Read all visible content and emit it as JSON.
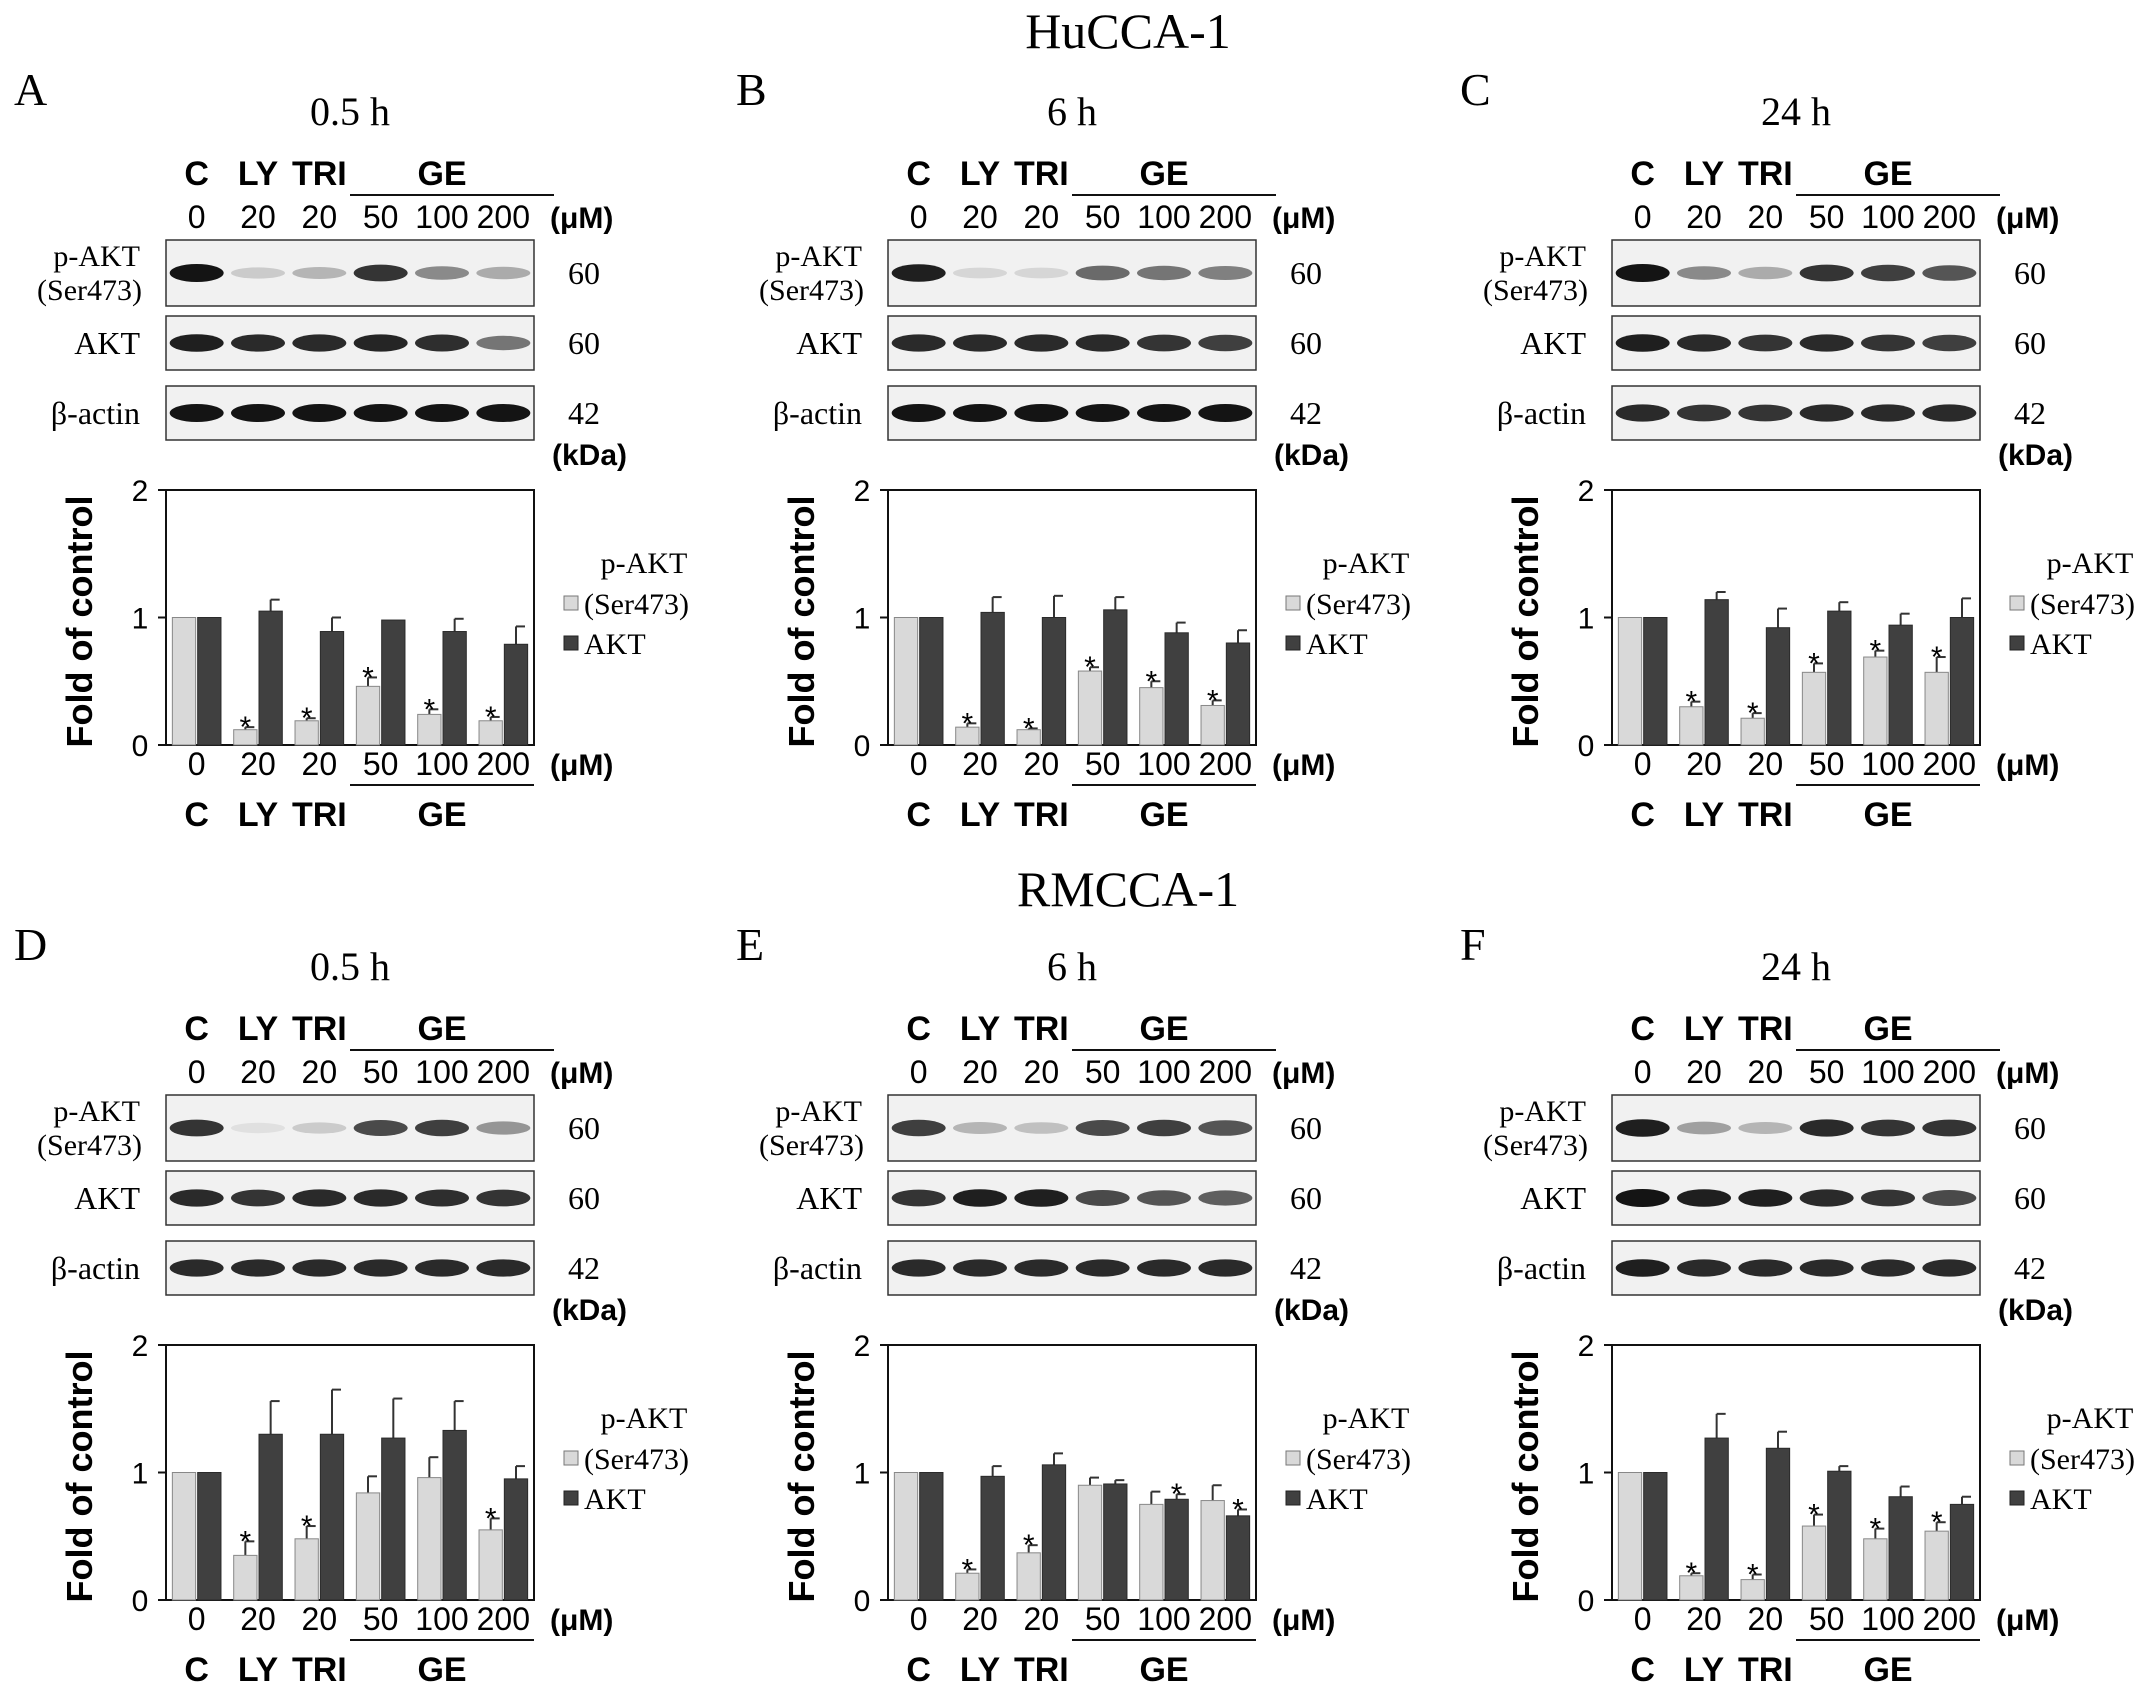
{
  "figure": {
    "row_titles": [
      "HuCCA-1",
      "RMCCA-1"
    ],
    "panels": [
      {
        "letter": "A",
        "time": "0.5 h"
      },
      {
        "letter": "B",
        "time": "6 h"
      },
      {
        "letter": "C",
        "time": "24 h"
      },
      {
        "letter": "D",
        "time": "0.5 h"
      },
      {
        "letter": "E",
        "time": "6 h"
      },
      {
        "letter": "F",
        "time": "24 h"
      }
    ],
    "lane_groups": [
      "C",
      "LY",
      "TRI",
      "GE"
    ],
    "concentrations": [
      "0",
      "20",
      "20",
      "50",
      "100",
      "200"
    ],
    "conc_unit": "(μM)",
    "blots": [
      {
        "label": "p-AKT",
        "label2": "(Ser473)",
        "kda": "60"
      },
      {
        "label": "AKT",
        "label2": "",
        "kda": "60"
      },
      {
        "label": "β-actin",
        "label2": "",
        "kda": "42"
      }
    ],
    "kda_unit": "(kDa)",
    "legend": {
      "title": "p-AKT",
      "light": "(Ser473)",
      "dark": "AKT"
    },
    "colors": {
      "light_bar": "#d9d9d9",
      "dark_bar": "#404040",
      "band": "#1a1a1a"
    }
  },
  "chart_data": [
    {
      "type": "bar",
      "panel": "A",
      "ylabel": "Fold of control",
      "ylim": [
        0,
        2
      ],
      "yticks": [
        "0",
        "1",
        "2"
      ],
      "categories": [
        "0",
        "20",
        "20",
        "50",
        "100",
        "200"
      ],
      "series": [
        {
          "name": "p-AKT (Ser473)",
          "values": [
            1.0,
            0.12,
            0.19,
            0.46,
            0.24,
            0.19
          ],
          "errors": [
            0,
            0.02,
            0.02,
            0.07,
            0.04,
            0.03
          ],
          "significant": [
            false,
            true,
            true,
            true,
            true,
            true
          ]
        },
        {
          "name": "AKT",
          "values": [
            1.0,
            1.05,
            0.89,
            0.98,
            0.89,
            0.79
          ],
          "errors": [
            0,
            0.09,
            0.11,
            0,
            0.1,
            0.14
          ],
          "significant": [
            false,
            false,
            false,
            false,
            false,
            false
          ]
        }
      ]
    },
    {
      "type": "bar",
      "panel": "B",
      "ylabel": "Fold of control",
      "ylim": [
        0,
        2
      ],
      "yticks": [
        "0",
        "1",
        "2"
      ],
      "categories": [
        "0",
        "20",
        "20",
        "50",
        "100",
        "200"
      ],
      "series": [
        {
          "name": "p-AKT (Ser473)",
          "values": [
            1.0,
            0.14,
            0.12,
            0.58,
            0.45,
            0.31
          ],
          "errors": [
            0,
            0.03,
            0.01,
            0.03,
            0.05,
            0.04
          ],
          "significant": [
            false,
            true,
            true,
            true,
            true,
            true
          ]
        },
        {
          "name": "AKT",
          "values": [
            1.0,
            1.04,
            1.0,
            1.06,
            0.88,
            0.8
          ],
          "errors": [
            0,
            0.12,
            0.17,
            0.1,
            0.08,
            0.1
          ],
          "significant": [
            false,
            false,
            false,
            false,
            false,
            false
          ]
        }
      ]
    },
    {
      "type": "bar",
      "panel": "C",
      "ylabel": "Fold of control",
      "ylim": [
        0,
        2
      ],
      "yticks": [
        "0",
        "1",
        "2"
      ],
      "categories": [
        "0",
        "20",
        "20",
        "50",
        "100",
        "200"
      ],
      "series": [
        {
          "name": "p-AKT (Ser473)",
          "values": [
            1.0,
            0.3,
            0.21,
            0.57,
            0.69,
            0.57
          ],
          "errors": [
            0,
            0.04,
            0.04,
            0.07,
            0.05,
            0.12
          ],
          "significant": [
            false,
            true,
            true,
            true,
            true,
            true
          ]
        },
        {
          "name": "AKT",
          "values": [
            1.0,
            1.14,
            0.92,
            1.05,
            0.94,
            1.0
          ],
          "errors": [
            0,
            0.06,
            0.15,
            0.07,
            0.09,
            0.15
          ],
          "significant": [
            false,
            false,
            false,
            false,
            false,
            false
          ]
        }
      ]
    },
    {
      "type": "bar",
      "panel": "D",
      "ylabel": "Fold of control",
      "ylim": [
        0,
        2
      ],
      "yticks": [
        "0",
        "1",
        "2"
      ],
      "categories": [
        "0",
        "20",
        "20",
        "50",
        "100",
        "200"
      ],
      "series": [
        {
          "name": "p-AKT (Ser473)",
          "values": [
            1.0,
            0.35,
            0.48,
            0.84,
            0.96,
            0.55
          ],
          "errors": [
            0,
            0.11,
            0.1,
            0.13,
            0.16,
            0.09
          ],
          "significant": [
            false,
            true,
            true,
            false,
            false,
            true
          ]
        },
        {
          "name": "AKT",
          "values": [
            1.0,
            1.3,
            1.3,
            1.27,
            1.33,
            0.95
          ],
          "errors": [
            0,
            0.26,
            0.35,
            0.31,
            0.23,
            0.1
          ],
          "significant": [
            false,
            false,
            false,
            false,
            false,
            false
          ]
        }
      ]
    },
    {
      "type": "bar",
      "panel": "E",
      "ylabel": "Fold of control",
      "ylim": [
        0,
        2
      ],
      "yticks": [
        "0",
        "1",
        "2"
      ],
      "categories": [
        "0",
        "20",
        "20",
        "50",
        "100",
        "200"
      ],
      "series": [
        {
          "name": "p-AKT (Ser473)",
          "values": [
            1.0,
            0.21,
            0.37,
            0.9,
            0.75,
            0.78
          ],
          "errors": [
            0,
            0.03,
            0.06,
            0.06,
            0.1,
            0.12
          ],
          "significant": [
            false,
            true,
            true,
            false,
            false,
            false
          ]
        },
        {
          "name": "AKT",
          "values": [
            1.0,
            0.97,
            1.06,
            0.91,
            0.79,
            0.66
          ],
          "errors": [
            0,
            0.08,
            0.09,
            0.03,
            0.04,
            0.05
          ],
          "significant": [
            false,
            false,
            false,
            false,
            true,
            true
          ]
        }
      ]
    },
    {
      "type": "bar",
      "panel": "F",
      "ylabel": "Fold of control",
      "ylim": [
        0,
        2
      ],
      "yticks": [
        "0",
        "1",
        "2"
      ],
      "categories": [
        "0",
        "20",
        "20",
        "50",
        "100",
        "200"
      ],
      "series": [
        {
          "name": "p-AKT (Ser473)",
          "values": [
            1.0,
            0.19,
            0.16,
            0.58,
            0.48,
            0.54
          ],
          "errors": [
            0,
            0.02,
            0.04,
            0.09,
            0.08,
            0.07
          ],
          "significant": [
            false,
            true,
            true,
            true,
            true,
            true
          ]
        },
        {
          "name": "AKT",
          "values": [
            1.0,
            1.27,
            1.19,
            1.01,
            0.81,
            0.75
          ],
          "errors": [
            0,
            0.19,
            0.13,
            0.04,
            0.08,
            0.06
          ],
          "significant": [
            false,
            false,
            false,
            false,
            false,
            false
          ]
        }
      ]
    }
  ],
  "blot_intensities": [
    {
      "panel": "A",
      "pakt": [
        1.0,
        0.15,
        0.25,
        0.85,
        0.45,
        0.3
      ],
      "akt": [
        0.95,
        0.9,
        0.9,
        0.92,
        0.88,
        0.55
      ],
      "actin": [
        1,
        1,
        1,
        1,
        1,
        1
      ]
    },
    {
      "panel": "B",
      "pakt": [
        0.95,
        0.1,
        0.1,
        0.6,
        0.55,
        0.5
      ],
      "akt": [
        0.9,
        0.9,
        0.9,
        0.9,
        0.85,
        0.8
      ],
      "actin": [
        1,
        1,
        1,
        1,
        1,
        1
      ]
    },
    {
      "panel": "C",
      "pakt": [
        1.0,
        0.45,
        0.3,
        0.85,
        0.8,
        0.7
      ],
      "akt": [
        0.95,
        0.9,
        0.85,
        0.9,
        0.85,
        0.8
      ],
      "actin": [
        0.9,
        0.85,
        0.85,
        0.9,
        0.9,
        0.9
      ]
    },
    {
      "panel": "D",
      "pakt": [
        0.85,
        0.05,
        0.15,
        0.75,
        0.8,
        0.4
      ],
      "akt": [
        0.9,
        0.85,
        0.9,
        0.9,
        0.88,
        0.85
      ],
      "actin": [
        0.9,
        0.9,
        0.9,
        0.9,
        0.9,
        0.9
      ]
    },
    {
      "panel": "E",
      "pakt": [
        0.8,
        0.25,
        0.2,
        0.75,
        0.8,
        0.7
      ],
      "akt": [
        0.85,
        0.95,
        0.95,
        0.75,
        0.7,
        0.65
      ],
      "actin": [
        0.9,
        0.9,
        0.9,
        0.9,
        0.9,
        0.9
      ]
    },
    {
      "panel": "F",
      "pakt": [
        0.95,
        0.35,
        0.25,
        0.9,
        0.85,
        0.85
      ],
      "akt": [
        1.0,
        0.95,
        0.95,
        0.9,
        0.85,
        0.75
      ],
      "actin": [
        0.95,
        0.9,
        0.9,
        0.9,
        0.9,
        0.9
      ]
    }
  ]
}
